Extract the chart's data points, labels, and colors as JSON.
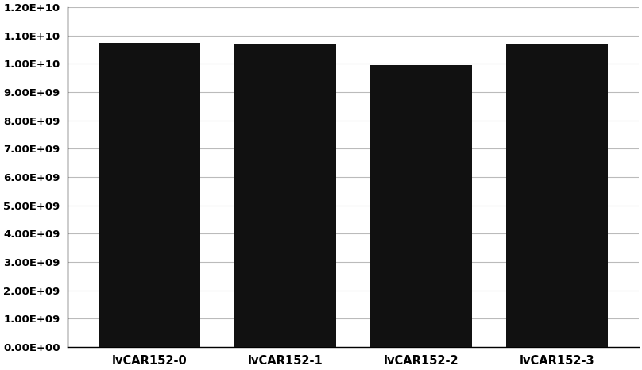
{
  "categories": [
    "lvCAR152-0",
    "lvCAR152-1",
    "lvCAR152-2",
    "lvCAR152-3"
  ],
  "values": [
    10750000000.0,
    10680000000.0,
    9950000000.0,
    10680000000.0
  ],
  "bar_color": "#111111",
  "background_color": "#ffffff",
  "ylim": [
    0,
    12000000000.0
  ],
  "yticks": [
    0,
    1000000000.0,
    2000000000.0,
    3000000000.0,
    4000000000.0,
    5000000000.0,
    6000000000.0,
    7000000000.0,
    8000000000.0,
    9000000000.0,
    10000000000.0,
    11000000000.0,
    12000000000.0
  ],
  "ytick_labels": [
    "0.00E+00",
    "1.00E+09",
    "2.00E+09",
    "3.00E+09",
    "4.00E+09",
    "5.00E+09",
    "6.00E+09",
    "7.00E+09",
    "8.00E+09",
    "9.00E+09",
    "1.00E+10",
    "1.10E+10",
    "1.20E+10"
  ],
  "bar_width": 0.75,
  "grid_color": "#bbbbbb",
  "ytick_fontsize": 9.5,
  "xtick_fontsize": 10.5
}
